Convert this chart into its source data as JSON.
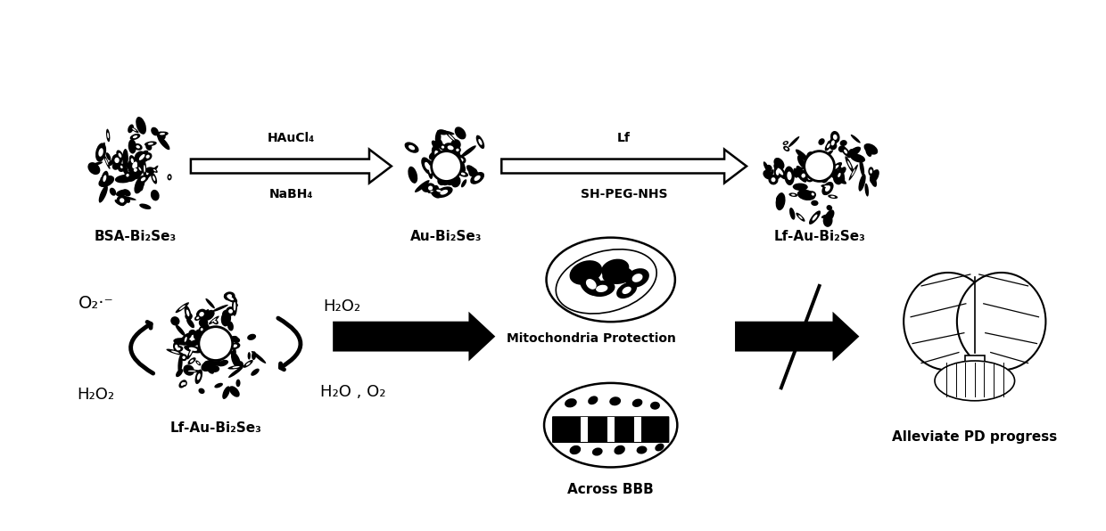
{
  "bg_color": "#ffffff",
  "fig_width": 12.4,
  "fig_height": 5.96,
  "top_labels": {
    "bsa_bi2se3": "BSA-Bi₂Se₃",
    "au_bi2se3": "Au-Bi₂Se₃",
    "lf_au_bi2se3_top": "Lf-Au-Bi₂Se₃"
  },
  "top_arrow1_above": "HAuCl₄",
  "top_arrow1_below": "NaBH₄",
  "top_arrow2_above": "Lf",
  "top_arrow2_below": "SH-PEG-NHS",
  "bottom_left_o2": "O₂·⁻",
  "bottom_left_h2o2": "H₂O₂",
  "bottom_right_h2o2": "H₂O₂",
  "bottom_right_h2o_o2": "H₂O , O₂",
  "bottom_center_label": "Lf-Au-Bi₂Se₃",
  "mitochondria_text": "Mitochondria Protection",
  "across_bbb": "Across BBB",
  "alleviate_pd": "Alleviate PD progress",
  "text_color": "#000000",
  "label_fontsize": 11,
  "small_fontsize": 10,
  "bold_fontsize": 13
}
